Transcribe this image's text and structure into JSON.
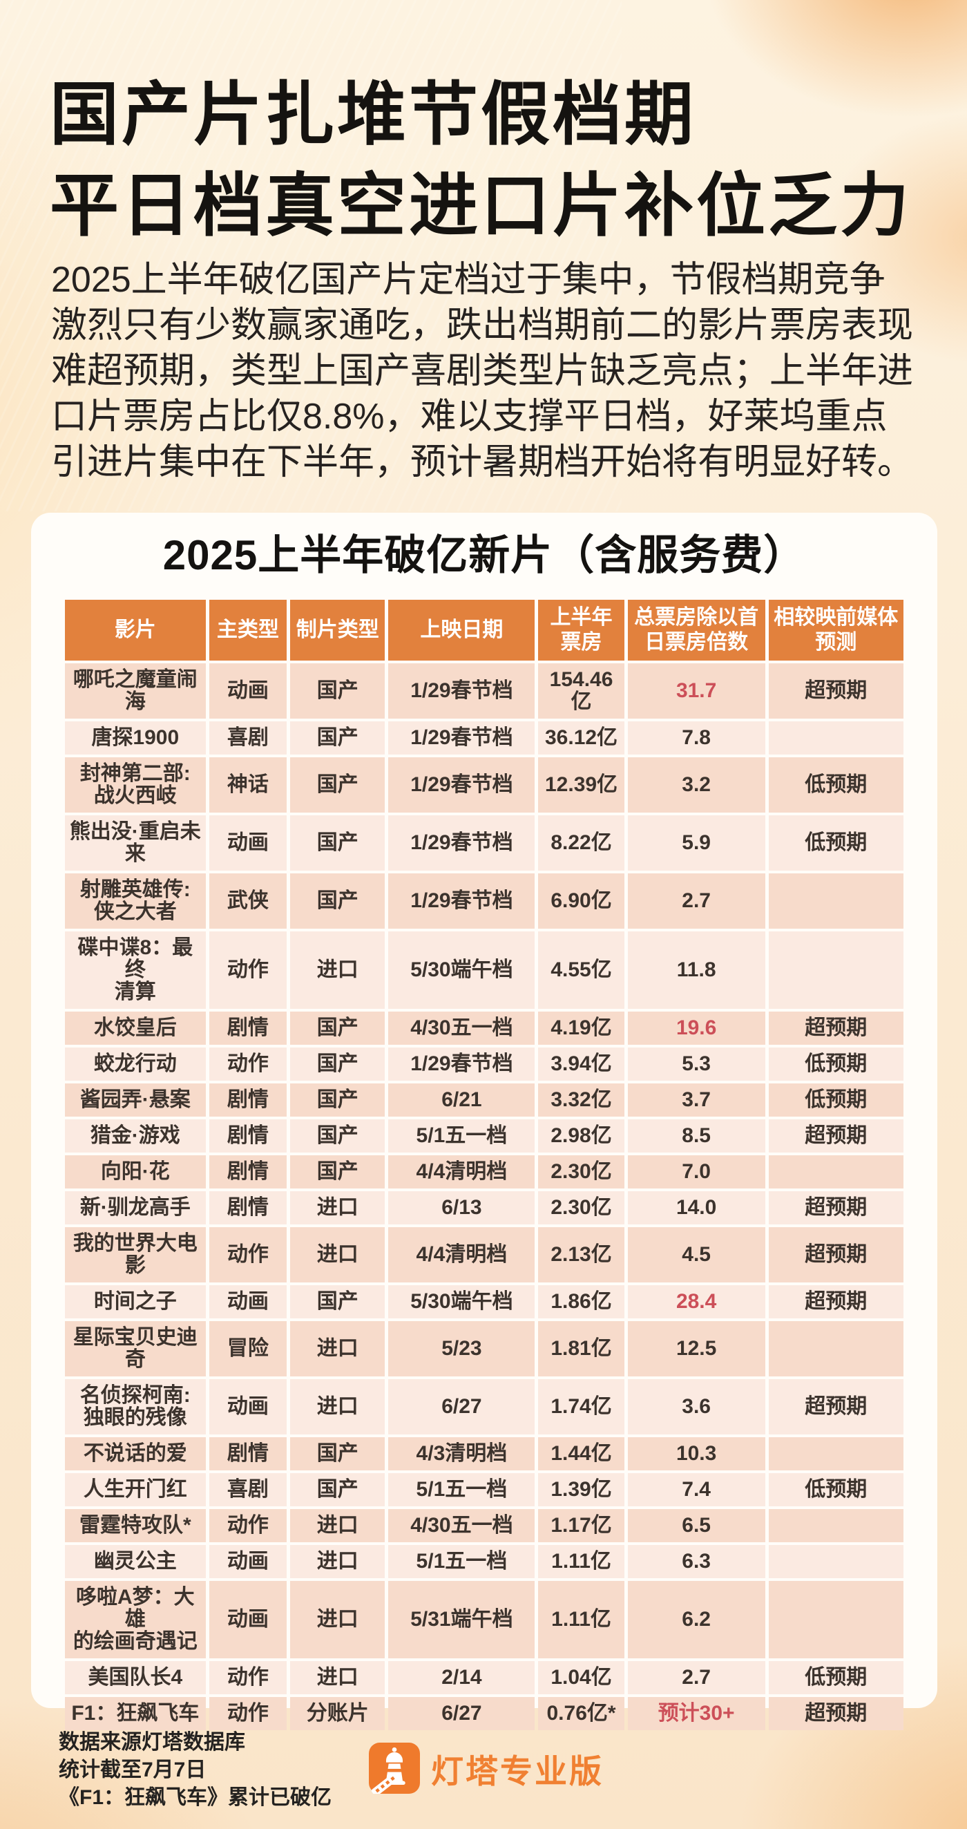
{
  "header": {
    "title_lines": [
      "国产片扎堆节假档期",
      "平日档真空进口片补位乏力"
    ],
    "intro_lines": "2025上半年破亿国产片定档过于集中，节假档期竞争\n激烈只有少数赢家通吃，跌出档期前二的影片票房表现\n难超预期，类型上国产喜剧类型片缺乏亮点；上半年进\n口片票房占比仅8.8%，难以支撑平日档，好莱坞重点\n引进片集中在下半年，预计暑期档开始将有明显好转。"
  },
  "card": {
    "title": "2025上半年破亿新片（含服务费）"
  },
  "chart_data": {
    "type": "table",
    "title": "2025上半年破亿新片（含服务费）",
    "columns": [
      "影片",
      "主类型",
      "制片类型",
      "上映日期",
      "上半年\n票房",
      "总票房除以首\n日票房倍数",
      "相较映前媒体\n预测"
    ],
    "row_keys": [
      "film",
      "genre",
      "production",
      "release_date",
      "box_office",
      "multiple",
      "vs_forecast"
    ],
    "rows": [
      {
        "film": "哪吒之魔童闹\n海",
        "genre": "动画",
        "production": "国产",
        "release_date": "1/29春节档",
        "box_office": "154.46亿",
        "multiple": "31.7",
        "vs_forecast": "超预期",
        "multiple_red": true
      },
      {
        "film": "唐探1900",
        "genre": "喜剧",
        "production": "国产",
        "release_date": "1/29春节档",
        "box_office": "36.12亿",
        "multiple": "7.8",
        "vs_forecast": "",
        "multiple_red": false
      },
      {
        "film": "封神第二部:\n战火西岐",
        "genre": "神话",
        "production": "国产",
        "release_date": "1/29春节档",
        "box_office": "12.39亿",
        "multiple": "3.2",
        "vs_forecast": "低预期",
        "multiple_red": false
      },
      {
        "film": "熊出没·重启未\n来",
        "genre": "动画",
        "production": "国产",
        "release_date": "1/29春节档",
        "box_office": "8.22亿",
        "multiple": "5.9",
        "vs_forecast": "低预期",
        "multiple_red": false
      },
      {
        "film": "射雕英雄传:\n侠之大者",
        "genre": "武侠",
        "production": "国产",
        "release_date": "1/29春节档",
        "box_office": "6.90亿",
        "multiple": "2.7",
        "vs_forecast": "",
        "multiple_red": false
      },
      {
        "film": "碟中谍8：最终\n清算",
        "genre": "动作",
        "production": "进口",
        "release_date": "5/30端午档",
        "box_office": "4.55亿",
        "multiple": "11.8",
        "vs_forecast": "",
        "multiple_red": false
      },
      {
        "film": "水饺皇后",
        "genre": "剧情",
        "production": "国产",
        "release_date": "4/30五一档",
        "box_office": "4.19亿",
        "multiple": "19.6",
        "vs_forecast": "超预期",
        "multiple_red": true
      },
      {
        "film": "蛟龙行动",
        "genre": "动作",
        "production": "国产",
        "release_date": "1/29春节档",
        "box_office": "3.94亿",
        "multiple": "5.3",
        "vs_forecast": "低预期",
        "multiple_red": false
      },
      {
        "film": "酱园弄·悬案",
        "genre": "剧情",
        "production": "国产",
        "release_date": "6/21",
        "box_office": "3.32亿",
        "multiple": "3.7",
        "vs_forecast": "低预期",
        "multiple_red": false
      },
      {
        "film": "猎金·游戏",
        "genre": "剧情",
        "production": "国产",
        "release_date": "5/1五一档",
        "box_office": "2.98亿",
        "multiple": "8.5",
        "vs_forecast": "超预期",
        "multiple_red": false
      },
      {
        "film": "向阳·花",
        "genre": "剧情",
        "production": "国产",
        "release_date": "4/4清明档",
        "box_office": "2.30亿",
        "multiple": "7.0",
        "vs_forecast": "",
        "multiple_red": false
      },
      {
        "film": "新·驯龙高手",
        "genre": "剧情",
        "production": "进口",
        "release_date": "6/13",
        "box_office": "2.30亿",
        "multiple": "14.0",
        "vs_forecast": "超预期",
        "multiple_red": false
      },
      {
        "film": "我的世界大电\n影",
        "genre": "动作",
        "production": "进口",
        "release_date": "4/4清明档",
        "box_office": "2.13亿",
        "multiple": "4.5",
        "vs_forecast": "超预期",
        "multiple_red": false
      },
      {
        "film": "时间之子",
        "genre": "动画",
        "production": "国产",
        "release_date": "5/30端午档",
        "box_office": "1.86亿",
        "multiple": "28.4",
        "vs_forecast": "超预期",
        "multiple_red": true
      },
      {
        "film": "星际宝贝史迪\n奇",
        "genre": "冒险",
        "production": "进口",
        "release_date": "5/23",
        "box_office": "1.81亿",
        "multiple": "12.5",
        "vs_forecast": "",
        "multiple_red": false
      },
      {
        "film": "名侦探柯南:\n独眼的残像",
        "genre": "动画",
        "production": "进口",
        "release_date": "6/27",
        "box_office": "1.74亿",
        "multiple": "3.6",
        "vs_forecast": "超预期",
        "multiple_red": false
      },
      {
        "film": "不说话的爱",
        "genre": "剧情",
        "production": "国产",
        "release_date": "4/3清明档",
        "box_office": "1.44亿",
        "multiple": "10.3",
        "vs_forecast": "",
        "multiple_red": false
      },
      {
        "film": "人生开门红",
        "genre": "喜剧",
        "production": "国产",
        "release_date": "5/1五一档",
        "box_office": "1.39亿",
        "multiple": "7.4",
        "vs_forecast": "低预期",
        "multiple_red": false
      },
      {
        "film": "雷霆特攻队*",
        "genre": "动作",
        "production": "进口",
        "release_date": "4/30五一档",
        "box_office": "1.17亿",
        "multiple": "6.5",
        "vs_forecast": "",
        "multiple_red": false
      },
      {
        "film": "幽灵公主",
        "genre": "动画",
        "production": "进口",
        "release_date": "5/1五一档",
        "box_office": "1.11亿",
        "multiple": "6.3",
        "vs_forecast": "",
        "multiple_red": false
      },
      {
        "film": "哆啦A梦：大雄\n的绘画奇遇记",
        "genre": "动画",
        "production": "进口",
        "release_date": "5/31端午档",
        "box_office": "1.11亿",
        "multiple": "6.2",
        "vs_forecast": "",
        "multiple_red": false
      },
      {
        "film": "美国队长4",
        "genre": "动作",
        "production": "进口",
        "release_date": "2/14",
        "box_office": "1.04亿",
        "multiple": "2.7",
        "vs_forecast": "低预期",
        "multiple_red": false
      },
      {
        "film": "F1：狂飙飞车",
        "genre": "动作",
        "production": "分账片",
        "release_date": "6/27",
        "box_office": "0.76亿*",
        "multiple": "预计30+",
        "vs_forecast": "超预期",
        "multiple_red": true
      }
    ]
  },
  "footer": {
    "notes": [
      "数据来源灯塔数据库",
      "统计截至7月7日",
      "《F1：狂飙飞车》累计已破亿"
    ],
    "brand": "灯塔专业版"
  },
  "colors": {
    "table_header_bg": "#e2813d",
    "row_odd_bg": "#f7dbcb",
    "row_even_bg": "#fbeae1",
    "highlight_red": "#cc4f58",
    "brand_orange": "#f08032"
  }
}
